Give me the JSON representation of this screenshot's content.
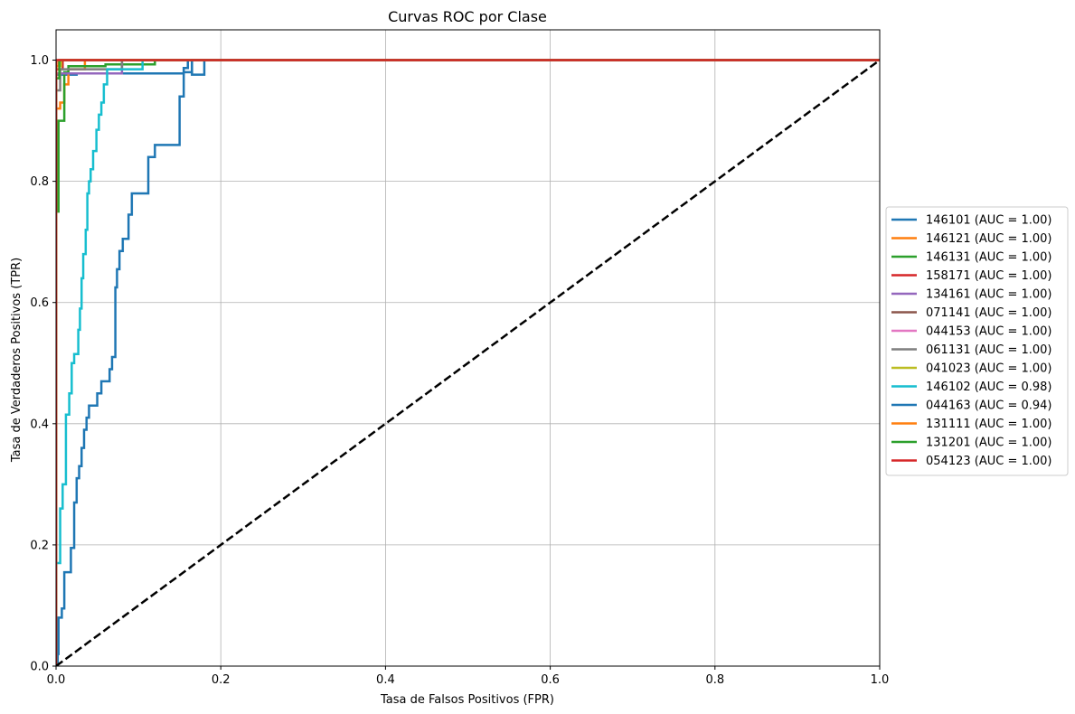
{
  "chart_data": {
    "type": "line",
    "title": "Curvas ROC por Clase",
    "xlabel": "Tasa de Falsos Positivos (FPR)",
    "ylabel": "Tasa de Verdaderos Positivos (TPR)",
    "xlim": [
      0.0,
      1.0
    ],
    "ylim": [
      0.0,
      1.05
    ],
    "grid": true,
    "legend_position": "center-right-outside",
    "xticks": [
      "0.0",
      "0.2",
      "0.4",
      "0.6",
      "0.8",
      "1.0"
    ],
    "yticks": [
      "0.0",
      "0.2",
      "0.4",
      "0.6",
      "0.8",
      "1.0"
    ],
    "diagonal": {
      "color": "#000000",
      "style": "dashed",
      "points": [
        [
          0,
          0
        ],
        [
          1,
          1
        ]
      ]
    },
    "series": [
      {
        "name": "146101 (AUC = 1.00)",
        "color": "#1f77b4",
        "points": [
          [
            0,
            0
          ],
          [
            0,
            0.976
          ],
          [
            0.025,
            0.976
          ],
          [
            0.025,
            0.978
          ],
          [
            0.155,
            0.978
          ],
          [
            0.155,
            0.987
          ],
          [
            0.16,
            0.987
          ],
          [
            0.16,
            1.0
          ],
          [
            0.165,
            1.0
          ],
          [
            0.165,
            0.976
          ],
          [
            0.18,
            0.976
          ],
          [
            0.18,
            1.0
          ],
          [
            1,
            1.0
          ]
        ]
      },
      {
        "name": "146121 (AUC = 1.00)",
        "color": "#ff7f0e",
        "points": [
          [
            0,
            0
          ],
          [
            0,
            0.92
          ],
          [
            0.005,
            0.92
          ],
          [
            0.005,
            0.93
          ],
          [
            0.01,
            0.93
          ],
          [
            0.01,
            0.96
          ],
          [
            0.015,
            0.96
          ],
          [
            0.015,
            0.985
          ],
          [
            0.035,
            0.985
          ],
          [
            0.035,
            1.0
          ],
          [
            1,
            1.0
          ]
        ]
      },
      {
        "name": "146131 (AUC = 1.00)",
        "color": "#2ca02c",
        "points": [
          [
            0,
            0
          ],
          [
            0,
            0.75
          ],
          [
            0.003,
            0.75
          ],
          [
            0.003,
            0.9
          ],
          [
            0.01,
            0.9
          ],
          [
            0.01,
            0.98
          ],
          [
            0.015,
            0.98
          ],
          [
            0.015,
            0.99
          ],
          [
            0.06,
            0.99
          ],
          [
            0.06,
            0.993
          ],
          [
            0.12,
            0.993
          ],
          [
            0.12,
            1.0
          ],
          [
            1,
            1.0
          ]
        ]
      },
      {
        "name": "158171 (AUC = 1.00)",
        "color": "#d62728",
        "points": [
          [
            0,
            0
          ],
          [
            0,
            0.985
          ],
          [
            0.008,
            0.985
          ],
          [
            0.008,
            1.0
          ],
          [
            1,
            1.0
          ]
        ]
      },
      {
        "name": "134161 (AUC = 1.00)",
        "color": "#9467bd",
        "points": [
          [
            0,
            0
          ],
          [
            0,
            0.978
          ],
          [
            0.08,
            0.978
          ],
          [
            0.08,
            1.0
          ],
          [
            1,
            1.0
          ]
        ]
      },
      {
        "name": "071141 (AUC = 1.00)",
        "color": "#8c564b",
        "points": [
          [
            0,
            0
          ],
          [
            0,
            0.99
          ],
          [
            0.005,
            0.99
          ],
          [
            0.005,
            1.0
          ],
          [
            1,
            1.0
          ]
        ]
      },
      {
        "name": "044153 (AUC = 1.00)",
        "color": "#e377c2",
        "points": [
          [
            0,
            0
          ],
          [
            0,
            0.99
          ],
          [
            0.004,
            0.99
          ],
          [
            0.004,
            1.0
          ],
          [
            1,
            1.0
          ]
        ]
      },
      {
        "name": "061131 (AUC = 1.00)",
        "color": "#7f7f7f",
        "points": [
          [
            0,
            0
          ],
          [
            0,
            0.95
          ],
          [
            0.005,
            0.95
          ],
          [
            0.005,
            0.985
          ],
          [
            0.08,
            0.985
          ],
          [
            0.08,
            1.0
          ],
          [
            1,
            1.0
          ]
        ]
      },
      {
        "name": "041023 (AUC = 1.00)",
        "color": "#bcbd22",
        "points": [
          [
            0,
            0
          ],
          [
            0,
            0.99
          ],
          [
            0.006,
            0.99
          ],
          [
            0.006,
            1.0
          ],
          [
            1,
            1.0
          ]
        ]
      },
      {
        "name": "146102 (AUC = 0.98)",
        "color": "#17becf",
        "points": [
          [
            0,
            0
          ],
          [
            0,
            0.17
          ],
          [
            0.005,
            0.17
          ],
          [
            0.005,
            0.26
          ],
          [
            0.008,
            0.26
          ],
          [
            0.008,
            0.3
          ],
          [
            0.012,
            0.3
          ],
          [
            0.012,
            0.415
          ],
          [
            0.016,
            0.415
          ],
          [
            0.016,
            0.45
          ],
          [
            0.019,
            0.45
          ],
          [
            0.019,
            0.5
          ],
          [
            0.022,
            0.5
          ],
          [
            0.022,
            0.515
          ],
          [
            0.027,
            0.515
          ],
          [
            0.027,
            0.555
          ],
          [
            0.029,
            0.555
          ],
          [
            0.029,
            0.59
          ],
          [
            0.031,
            0.59
          ],
          [
            0.031,
            0.64
          ],
          [
            0.033,
            0.64
          ],
          [
            0.033,
            0.68
          ],
          [
            0.036,
            0.68
          ],
          [
            0.036,
            0.72
          ],
          [
            0.038,
            0.72
          ],
          [
            0.038,
            0.78
          ],
          [
            0.04,
            0.78
          ],
          [
            0.04,
            0.8
          ],
          [
            0.042,
            0.8
          ],
          [
            0.042,
            0.82
          ],
          [
            0.045,
            0.82
          ],
          [
            0.045,
            0.85
          ],
          [
            0.049,
            0.85
          ],
          [
            0.049,
            0.885
          ],
          [
            0.052,
            0.885
          ],
          [
            0.052,
            0.91
          ],
          [
            0.055,
            0.91
          ],
          [
            0.055,
            0.93
          ],
          [
            0.058,
            0.93
          ],
          [
            0.058,
            0.96
          ],
          [
            0.062,
            0.96
          ],
          [
            0.062,
            0.985
          ],
          [
            0.105,
            0.985
          ],
          [
            0.105,
            1.0
          ],
          [
            1,
            1.0
          ]
        ]
      },
      {
        "name": "044163 (AUC = 0.94)",
        "color": "#1f77b4",
        "points": [
          [
            0,
            0
          ],
          [
            0.002,
            0
          ],
          [
            0.002,
            0.02
          ],
          [
            0.003,
            0.02
          ],
          [
            0.003,
            0.08
          ],
          [
            0.007,
            0.08
          ],
          [
            0.007,
            0.095
          ],
          [
            0.01,
            0.095
          ],
          [
            0.01,
            0.155
          ],
          [
            0.018,
            0.155
          ],
          [
            0.018,
            0.195
          ],
          [
            0.022,
            0.195
          ],
          [
            0.022,
            0.27
          ],
          [
            0.025,
            0.27
          ],
          [
            0.025,
            0.31
          ],
          [
            0.028,
            0.31
          ],
          [
            0.028,
            0.33
          ],
          [
            0.031,
            0.33
          ],
          [
            0.031,
            0.36
          ],
          [
            0.034,
            0.36
          ],
          [
            0.034,
            0.39
          ],
          [
            0.037,
            0.39
          ],
          [
            0.037,
            0.41
          ],
          [
            0.04,
            0.41
          ],
          [
            0.04,
            0.43
          ],
          [
            0.05,
            0.43
          ],
          [
            0.05,
            0.45
          ],
          [
            0.055,
            0.45
          ],
          [
            0.055,
            0.47
          ],
          [
            0.065,
            0.47
          ],
          [
            0.065,
            0.49
          ],
          [
            0.068,
            0.49
          ],
          [
            0.068,
            0.51
          ],
          [
            0.072,
            0.51
          ],
          [
            0.072,
            0.625
          ],
          [
            0.074,
            0.625
          ],
          [
            0.074,
            0.655
          ],
          [
            0.077,
            0.655
          ],
          [
            0.077,
            0.685
          ],
          [
            0.081,
            0.685
          ],
          [
            0.081,
            0.705
          ],
          [
            0.088,
            0.705
          ],
          [
            0.088,
            0.745
          ],
          [
            0.092,
            0.745
          ],
          [
            0.092,
            0.78
          ],
          [
            0.112,
            0.78
          ],
          [
            0.112,
            0.84
          ],
          [
            0.12,
            0.84
          ],
          [
            0.12,
            0.86
          ],
          [
            0.15,
            0.86
          ],
          [
            0.15,
            0.94
          ],
          [
            0.155,
            0.94
          ],
          [
            0.155,
            0.98
          ],
          [
            0.165,
            0.98
          ],
          [
            0.165,
            1.0
          ],
          [
            1,
            1.0
          ]
        ]
      },
      {
        "name": "131111 (AUC = 1.00)",
        "color": "#ff7f0e",
        "points": [
          [
            0,
            0
          ],
          [
            0,
            0.99
          ],
          [
            0.003,
            0.99
          ],
          [
            0.003,
            1.0
          ],
          [
            1,
            1.0
          ]
        ]
      },
      {
        "name": "131201 (AUC = 1.00)",
        "color": "#2ca02c",
        "points": [
          [
            0,
            0
          ],
          [
            0,
            0.97
          ],
          [
            0.004,
            0.97
          ],
          [
            0.004,
            1.0
          ],
          [
            1,
            1.0
          ]
        ]
      },
      {
        "name": "054123 (AUC = 1.00)",
        "color": "#d62728",
        "points": [
          [
            0,
            0
          ],
          [
            0,
            1.0
          ],
          [
            1,
            1.0
          ]
        ]
      }
    ]
  }
}
